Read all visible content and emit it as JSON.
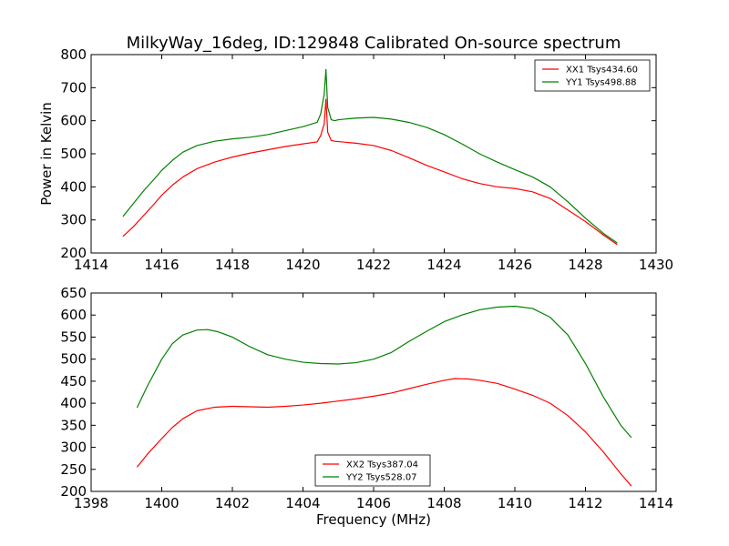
{
  "chart_data": [
    {
      "type": "line",
      "title": "MilkyWay_16deg, ID:129848 Calibrated On-source spectrum",
      "xlabel": "",
      "ylabel": "Power in Kelvin",
      "xlim": [
        1414,
        1430
      ],
      "ylim": [
        200,
        800
      ],
      "xticks": [
        1414,
        1416,
        1418,
        1420,
        1422,
        1424,
        1426,
        1428,
        1430
      ],
      "yticks": [
        200,
        300,
        400,
        500,
        600,
        700,
        800
      ],
      "legend_position": "top-right",
      "grid": false,
      "series": [
        {
          "name": "XX1 Tsys434.60",
          "color": "#ff0000",
          "x": [
            1414.9,
            1415.2,
            1415.5,
            1415.8,
            1416.0,
            1416.3,
            1416.6,
            1417.0,
            1417.5,
            1418.0,
            1418.5,
            1419.0,
            1419.5,
            1420.0,
            1420.4,
            1420.5,
            1420.6,
            1420.65,
            1420.7,
            1420.8,
            1420.9,
            1421.0,
            1421.5,
            1422.0,
            1422.5,
            1423.0,
            1423.5,
            1424.0,
            1424.5,
            1425.0,
            1425.5,
            1426.0,
            1426.5,
            1427.0,
            1427.5,
            1428.0,
            1428.5,
            1428.9
          ],
          "y": [
            250,
            280,
            315,
            350,
            375,
            405,
            430,
            455,
            475,
            490,
            502,
            512,
            522,
            530,
            536,
            555,
            590,
            665,
            565,
            540,
            538,
            537,
            532,
            525,
            510,
            488,
            465,
            445,
            425,
            410,
            400,
            395,
            385,
            365,
            330,
            295,
            255,
            225
          ]
        },
        {
          "name": "YY1 Tsys498.88",
          "color": "#008000",
          "x": [
            1414.9,
            1415.2,
            1415.5,
            1415.8,
            1416.0,
            1416.3,
            1416.6,
            1417.0,
            1417.5,
            1418.0,
            1418.5,
            1419.0,
            1419.5,
            1420.0,
            1420.4,
            1420.5,
            1420.6,
            1420.65,
            1420.7,
            1420.8,
            1420.9,
            1421.0,
            1421.5,
            1422.0,
            1422.5,
            1423.0,
            1423.5,
            1424.0,
            1424.5,
            1425.0,
            1425.5,
            1426.0,
            1426.5,
            1427.0,
            1427.5,
            1428.0,
            1428.5,
            1428.9
          ],
          "y": [
            310,
            350,
            390,
            425,
            450,
            480,
            505,
            525,
            538,
            545,
            550,
            558,
            570,
            582,
            595,
            620,
            680,
            755,
            640,
            603,
            600,
            603,
            608,
            610,
            605,
            595,
            580,
            558,
            530,
            500,
            475,
            452,
            430,
            400,
            355,
            305,
            260,
            230
          ]
        }
      ]
    },
    {
      "type": "line",
      "title": "",
      "xlabel": "Frequency (MHz)",
      "ylabel": "",
      "xlim": [
        1398,
        1414
      ],
      "ylim": [
        200,
        650
      ],
      "xticks": [
        1398,
        1400,
        1402,
        1404,
        1406,
        1408,
        1410,
        1412,
        1414
      ],
      "yticks": [
        200,
        250,
        300,
        350,
        400,
        450,
        500,
        550,
        600,
        650
      ],
      "legend_position": "bottom-center",
      "grid": false,
      "series": [
        {
          "name": "XX2 Tsys387.04",
          "color": "#ff0000",
          "x": [
            1399.3,
            1399.6,
            1400.0,
            1400.3,
            1400.6,
            1401.0,
            1401.5,
            1402.0,
            1402.5,
            1403.0,
            1403.5,
            1404.0,
            1404.5,
            1405.0,
            1405.5,
            1406.0,
            1406.5,
            1407.0,
            1407.5,
            1408.0,
            1408.3,
            1408.7,
            1409.0,
            1409.5,
            1410.0,
            1410.5,
            1411.0,
            1411.5,
            1412.0,
            1412.5,
            1413.0,
            1413.3
          ],
          "y": [
            255,
            285,
            320,
            345,
            365,
            383,
            391,
            393,
            392,
            391,
            393,
            396,
            400,
            405,
            410,
            416,
            423,
            433,
            443,
            452,
            456,
            455,
            452,
            445,
            432,
            418,
            400,
            372,
            335,
            290,
            240,
            212
          ]
        },
        {
          "name": "YY2 Tsys528.07",
          "color": "#008000",
          "x": [
            1399.3,
            1399.6,
            1400.0,
            1400.3,
            1400.6,
            1401.0,
            1401.3,
            1401.6,
            1402.0,
            1402.5,
            1403.0,
            1403.5,
            1404.0,
            1404.5,
            1405.0,
            1405.5,
            1406.0,
            1406.5,
            1407.0,
            1407.5,
            1408.0,
            1408.5,
            1409.0,
            1409.5,
            1410.0,
            1410.5,
            1411.0,
            1411.5,
            1412.0,
            1412.5,
            1413.0,
            1413.3
          ],
          "y": [
            390,
            440,
            500,
            535,
            555,
            566,
            567,
            562,
            550,
            528,
            510,
            500,
            493,
            490,
            489,
            492,
            500,
            515,
            540,
            563,
            585,
            600,
            612,
            618,
            620,
            615,
            595,
            555,
            490,
            415,
            350,
            322
          ]
        }
      ]
    }
  ]
}
